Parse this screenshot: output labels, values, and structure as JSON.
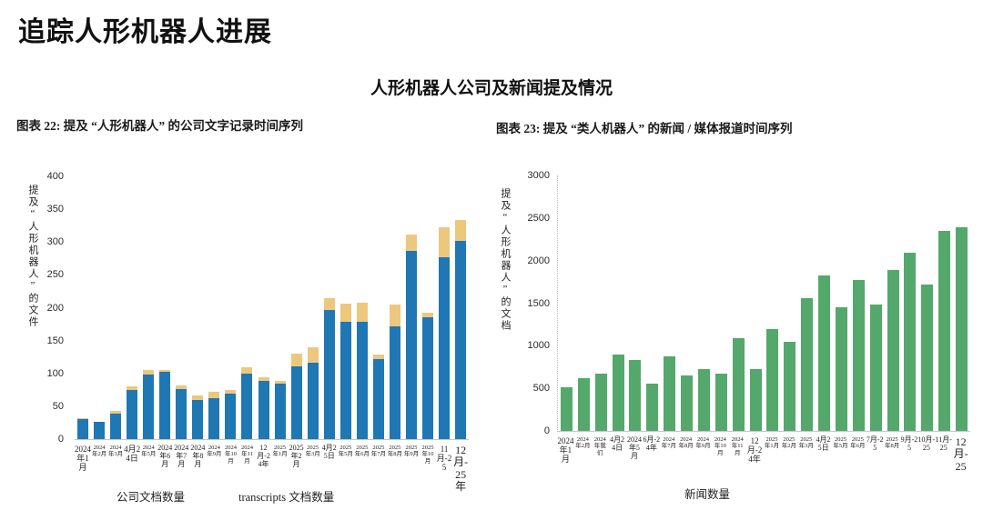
{
  "page": {
    "title": "追踪人形机器人进展",
    "subtitle": "人形机器人公司及新闻提及情况"
  },
  "chart_data": [
    {
      "type": "bar",
      "stacked": true,
      "title": "图表 22: 提及 “人形机器人” 的公司文字记录时间序列",
      "ylabel": "提及“人形机器人”的文件",
      "xlabel": "",
      "ylim": [
        0,
        400
      ],
      "yticks": [
        0,
        50,
        100,
        150,
        200,
        250,
        300,
        350,
        400
      ],
      "grid": false,
      "legend_position": "bottom",
      "categories": [
        "2024年1月",
        "2024年2月",
        "2024年3月",
        "4月24日",
        "2024年5月",
        "2024年6月",
        "2024年7月",
        "2024年8月",
        "2024年9月",
        "2024年10月",
        "2024年11月",
        "12月-24年",
        "2025年1月",
        "2025年2月",
        "2025年3月",
        "4月25日",
        "2025年5月",
        "2025年6月",
        "2025年7月",
        "2025年8月",
        "2025年9月",
        "2025年10月",
        "11月-25",
        "12月-25年"
      ],
      "label_sizes": [
        9,
        6.5,
        6.5,
        9,
        6.5,
        8,
        8,
        8,
        6.5,
        6.5,
        6.5,
        8,
        6.5,
        8,
        6.5,
        8,
        6.5,
        6.5,
        6.5,
        6.5,
        6.5,
        6.5,
        9,
        12
      ],
      "series": [
        {
          "key": "company",
          "name": "公司文档数量",
          "color": "#1f77b4",
          "values": [
            30,
            26,
            39,
            75,
            98,
            102,
            76,
            60,
            62,
            69,
            100,
            88,
            84,
            111,
            117,
            196,
            178,
            178,
            122,
            172,
            286,
            185,
            277,
            302
          ]
        },
        {
          "key": "transcripts",
          "name": "transcripts 文档数量",
          "color": "#ecc87c",
          "values": [
            2,
            0,
            4,
            5,
            7,
            3,
            6,
            6,
            10,
            6,
            10,
            6,
            4,
            19,
            23,
            18,
            28,
            30,
            7,
            33,
            26,
            8,
            46,
            31
          ]
        }
      ]
    },
    {
      "type": "bar",
      "stacked": false,
      "title": "图表 23: 提及 “类人机器人” 的新闻 / 媒体报道时间序列",
      "ylabel": "提及“人形机器人”的文档",
      "xlabel": "",
      "ylim": [
        0,
        3000
      ],
      "yticks": [
        0,
        500,
        1000,
        1500,
        2000,
        2500,
        3000
      ],
      "grid": false,
      "legend_position": "bottom",
      "categories": [
        "2024年1月",
        "2024年2月",
        "2024年我们",
        "4月24日",
        "2024年5月",
        "6月-24年",
        "2024年7月",
        "2024年8月",
        "2024年9月",
        "2024年10月",
        "2024年11月",
        "12月-24年",
        "2025年1月",
        "2025年2月",
        "2025年3月",
        "4月25日",
        "2025年5月",
        "2025年6月",
        "7月-25",
        "2025年8月",
        "9月-25",
        "10月-25",
        "11月-25",
        "12月-25"
      ],
      "label_sizes": [
        9,
        6.5,
        6.5,
        8,
        8,
        8,
        6.5,
        6.5,
        6.5,
        6.5,
        6.5,
        9,
        6.5,
        6.5,
        6.5,
        8,
        6.5,
        6.5,
        8,
        6.5,
        8,
        8,
        8,
        12
      ],
      "series": [
        {
          "key": "news",
          "name": "新闻数量",
          "color": "#54a86c",
          "values": [
            510,
            620,
            670,
            900,
            830,
            560,
            880,
            650,
            730,
            670,
            1090,
            730,
            1200,
            1050,
            1560,
            1830,
            1450,
            1770,
            1480,
            1890,
            2090,
            1720,
            2350,
            2390
          ]
        }
      ]
    }
  ]
}
